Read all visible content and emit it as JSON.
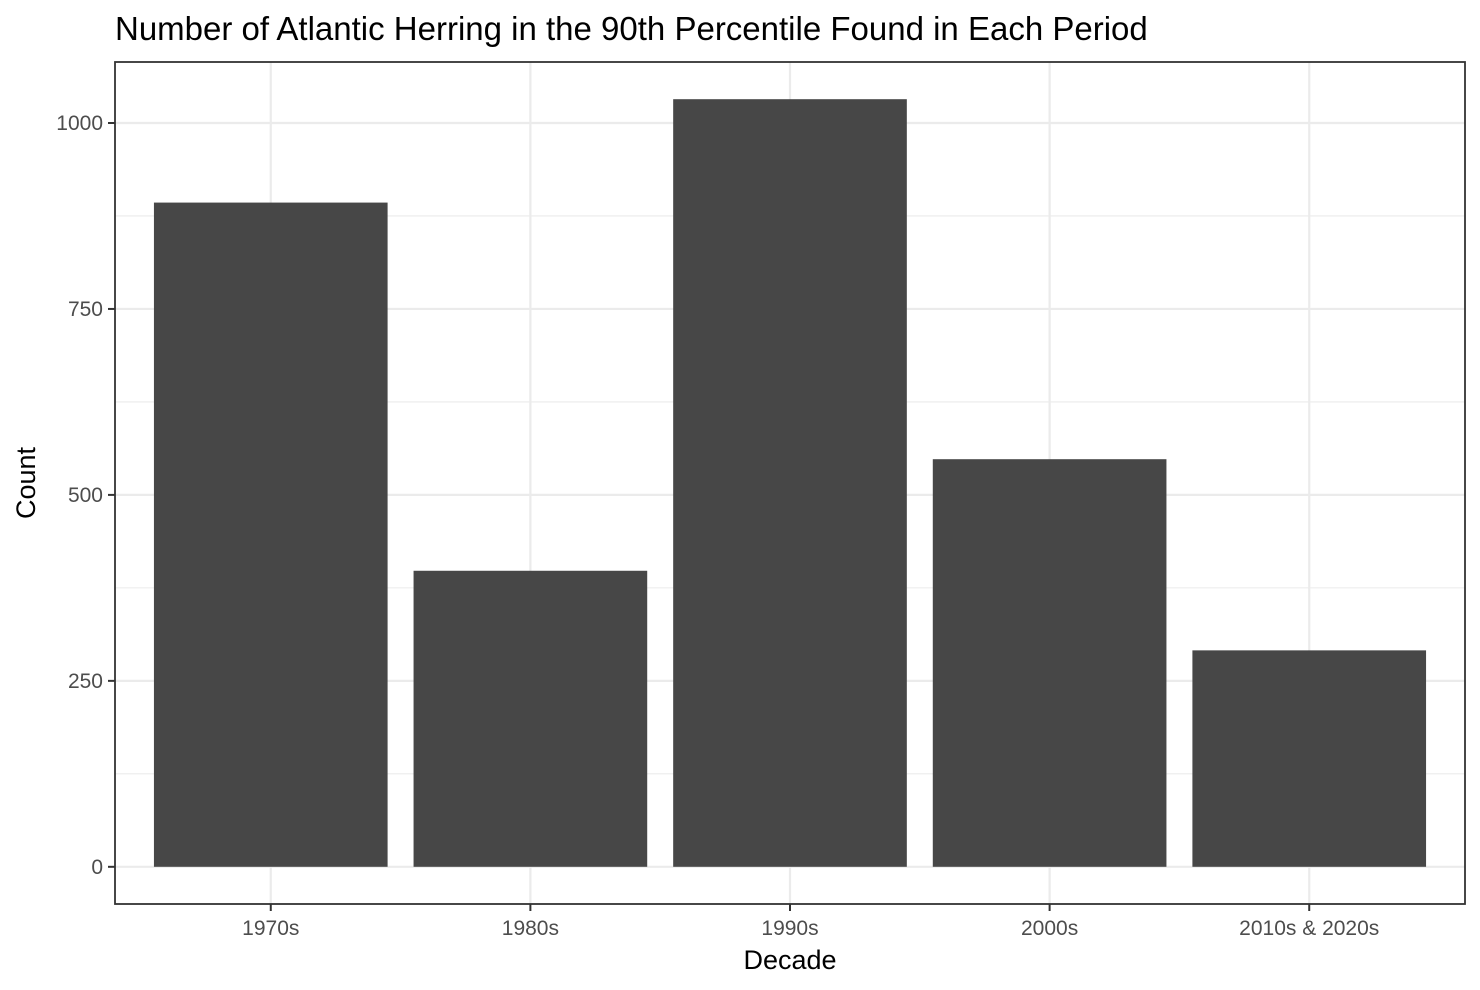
{
  "chart_data": {
    "type": "bar",
    "title": "Number of Atlantic Herring in the 90th Percentile Found in Each Period",
    "xlabel": "Decade",
    "ylabel": "Count",
    "categories": [
      "1970s",
      "1980s",
      "1990s",
      "2000s",
      "2010s & 2020s"
    ],
    "values": [
      893,
      398,
      1032,
      548,
      291
    ],
    "ylim": [
      -50,
      1082
    ],
    "yticks": [
      0,
      250,
      500,
      750,
      1000
    ],
    "ytick_labels": [
      "0",
      "250",
      "500",
      "750",
      "1000"
    ],
    "grid": true,
    "legend": "none",
    "bar_color": "#474747",
    "panel_background": "#ffffff",
    "grid_color": "#ebebeb"
  }
}
